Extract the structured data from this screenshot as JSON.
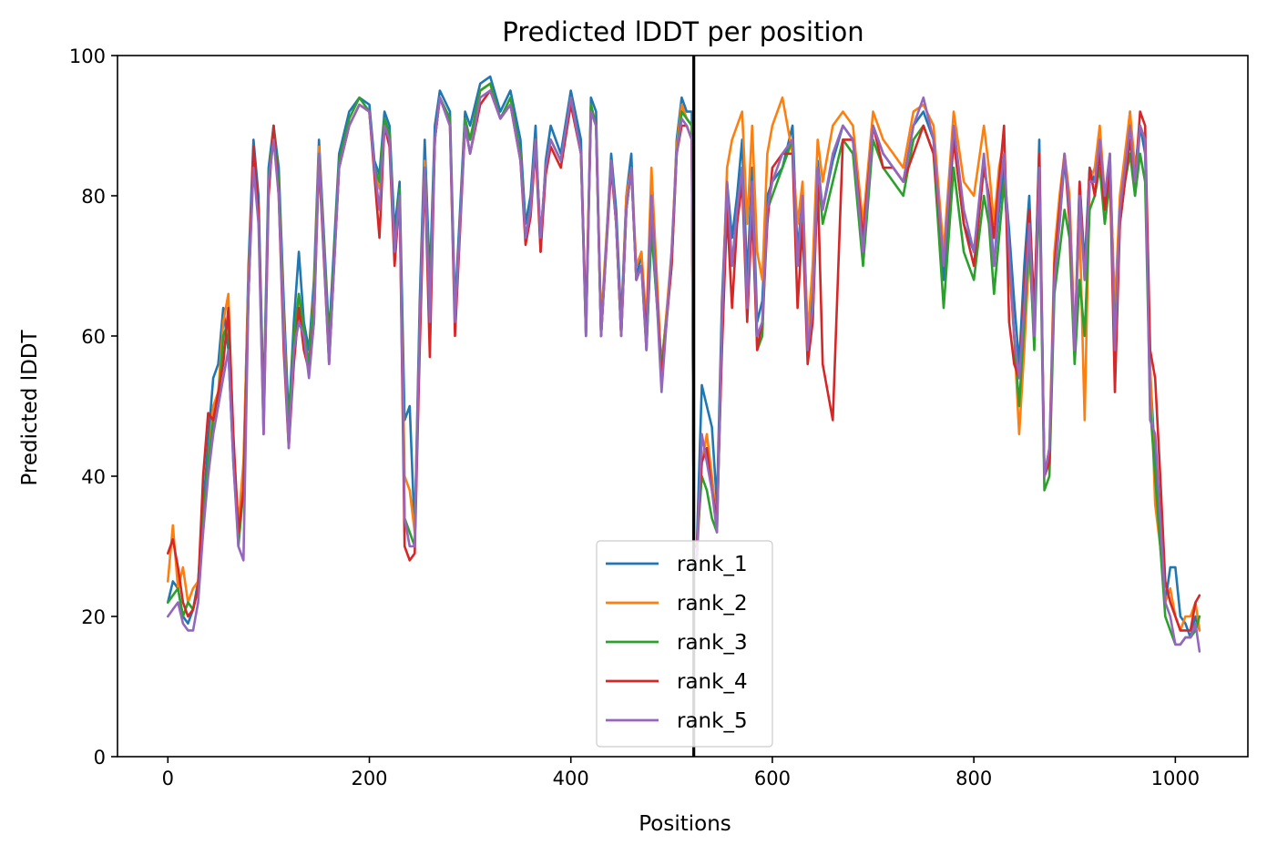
{
  "chart_data": {
    "type": "line",
    "title": "Predicted lDDT per position",
    "xlabel": "Positions",
    "ylabel": "Predicted lDDT",
    "xlim": [
      -50,
      1072
    ],
    "ylim": [
      0,
      100
    ],
    "xticks": [
      0,
      200,
      400,
      600,
      800,
      1000
    ],
    "yticks": [
      0,
      20,
      40,
      60,
      80,
      100
    ],
    "grid": false,
    "legend_position": "lower center",
    "chain_break_x": 522,
    "chain_break_color": "#000000",
    "series_x": [
      0,
      5,
      10,
      15,
      20,
      25,
      30,
      35,
      40,
      45,
      50,
      55,
      60,
      65,
      70,
      75,
      80,
      85,
      90,
      95,
      100,
      105,
      110,
      115,
      120,
      125,
      130,
      135,
      140,
      145,
      150,
      160,
      170,
      180,
      190,
      200,
      205,
      210,
      215,
      220,
      225,
      230,
      235,
      240,
      245,
      250,
      255,
      260,
      265,
      270,
      280,
      285,
      290,
      295,
      300,
      310,
      320,
      330,
      340,
      350,
      355,
      360,
      365,
      370,
      375,
      380,
      390,
      400,
      410,
      415,
      420,
      425,
      430,
      440,
      445,
      450,
      455,
      460,
      465,
      470,
      475,
      480,
      490,
      500,
      505,
      510,
      515,
      520,
      522,
      525,
      530,
      535,
      540,
      545,
      550,
      555,
      560,
      565,
      570,
      575,
      580,
      585,
      590,
      595,
      600,
      610,
      620,
      625,
      630,
      635,
      640,
      645,
      650,
      660,
      670,
      680,
      690,
      700,
      710,
      720,
      730,
      740,
      750,
      760,
      770,
      780,
      790,
      800,
      810,
      815,
      820,
      825,
      830,
      835,
      840,
      845,
      850,
      855,
      860,
      865,
      870,
      875,
      880,
      885,
      890,
      895,
      900,
      905,
      910,
      915,
      920,
      925,
      930,
      935,
      940,
      945,
      950,
      955,
      960,
      965,
      970,
      975,
      980,
      985,
      990,
      995,
      1000,
      1005,
      1010,
      1015,
      1020,
      1024
    ],
    "series": [
      {
        "name": "rank_1",
        "color": "#1f77b4",
        "values": [
          22,
          25,
          24,
          20,
          19,
          21,
          25,
          35,
          45,
          54,
          56,
          64,
          58,
          42,
          31,
          40,
          70,
          88,
          80,
          50,
          84,
          90,
          84,
          65,
          48,
          62,
          72,
          62,
          58,
          68,
          88,
          60,
          86,
          92,
          94,
          93,
          85,
          83,
          92,
          90,
          75,
          82,
          48,
          50,
          32,
          65,
          88,
          68,
          90,
          95,
          92,
          64,
          78,
          92,
          90,
          96,
          97,
          92,
          95,
          88,
          76,
          80,
          90,
          72,
          85,
          90,
          86,
          95,
          88,
          60,
          94,
          92,
          60,
          86,
          78,
          62,
          80,
          86,
          68,
          72,
          58,
          75,
          56,
          70,
          88,
          94,
          92,
          92,
          30,
          30,
          53,
          50,
          47,
          36,
          65,
          82,
          74,
          80,
          88,
          68,
          84,
          62,
          65,
          80,
          82,
          84,
          90,
          72,
          80,
          60,
          66,
          85,
          78,
          85,
          90,
          88,
          72,
          90,
          86,
          84,
          82,
          90,
          92,
          88,
          68,
          88,
          76,
          72,
          84,
          80,
          70,
          78,
          84,
          75,
          65,
          56,
          70,
          80,
          62,
          88,
          40,
          42,
          70,
          76,
          85,
          78,
          58,
          82,
          70,
          84,
          82,
          88,
          78,
          86,
          62,
          78,
          84,
          92,
          80,
          90,
          86,
          55,
          42,
          32,
          22,
          27,
          27,
          20,
          19,
          17,
          20,
          18
        ]
      },
      {
        "name": "rank_2",
        "color": "#ff7f0e",
        "values": [
          25,
          33,
          24,
          27,
          22,
          24,
          25,
          32,
          42,
          50,
          52,
          62,
          66,
          45,
          33,
          42,
          68,
          86,
          78,
          48,
          82,
          88,
          82,
          62,
          46,
          58,
          66,
          60,
          56,
          66,
          87,
          58,
          84,
          90,
          93,
          92,
          84,
          81,
          91,
          88,
          72,
          80,
          40,
          38,
          32,
          62,
          85,
          64,
          88,
          94,
          91,
          62,
          76,
          91,
          88,
          95,
          96,
          91,
          93,
          86,
          74,
          78,
          88,
          74,
          84,
          88,
          85,
          94,
          86,
          62,
          93,
          90,
          62,
          85,
          76,
          60,
          80,
          84,
          70,
          72,
          62,
          84,
          55,
          72,
          87,
          93,
          91,
          90,
          28,
          28,
          42,
          46,
          40,
          33,
          62,
          84,
          88,
          90,
          92,
          76,
          90,
          72,
          68,
          86,
          90,
          94,
          86,
          76,
          82,
          60,
          70,
          88,
          82,
          90,
          92,
          90,
          76,
          92,
          88,
          86,
          84,
          92,
          93,
          90,
          72,
          92,
          82,
          80,
          90,
          84,
          76,
          84,
          88,
          70,
          60,
          46,
          58,
          72,
          60,
          86,
          40,
          44,
          72,
          80,
          86,
          80,
          60,
          76,
          48,
          82,
          84,
          90,
          80,
          84,
          64,
          80,
          86,
          92,
          84,
          90,
          88,
          56,
          36,
          30,
          22,
          24,
          20,
          18,
          20,
          20,
          22,
          18
        ]
      },
      {
        "name": "rank_3",
        "color": "#2ca02c",
        "values": [
          22,
          23,
          24,
          20,
          22,
          21,
          24,
          34,
          42,
          48,
          50,
          60,
          62,
          44,
          30,
          38,
          66,
          86,
          78,
          48,
          82,
          90,
          82,
          60,
          47,
          60,
          66,
          61,
          56,
          65,
          86,
          58,
          85,
          91,
          94,
          92,
          84,
          82,
          91,
          89,
          72,
          81,
          34,
          32,
          30,
          62,
          84,
          64,
          88,
          94,
          91,
          62,
          76,
          91,
          88,
          95,
          96,
          91,
          94,
          86,
          74,
          78,
          88,
          74,
          84,
          88,
          85,
          94,
          86,
          60,
          93,
          90,
          60,
          85,
          76,
          60,
          78,
          84,
          68,
          70,
          58,
          76,
          55,
          70,
          86,
          92,
          91,
          90,
          30,
          30,
          40,
          38,
          34,
          32,
          60,
          80,
          70,
          78,
          84,
          64,
          80,
          58,
          60,
          78,
          80,
          84,
          88,
          70,
          78,
          58,
          62,
          84,
          76,
          82,
          88,
          86,
          70,
          88,
          84,
          82,
          80,
          88,
          90,
          86,
          64,
          84,
          72,
          68,
          80,
          76,
          66,
          74,
          82,
          72,
          60,
          50,
          62,
          74,
          58,
          82,
          38,
          40,
          66,
          72,
          78,
          74,
          56,
          68,
          60,
          78,
          80,
          84,
          76,
          82,
          60,
          76,
          82,
          86,
          80,
          86,
          82,
          50,
          40,
          30,
          20,
          18,
          16,
          16,
          17,
          17,
          18,
          20
        ]
      },
      {
        "name": "rank_4",
        "color": "#d62728",
        "values": [
          29,
          31,
          27,
          22,
          20,
          21,
          24,
          40,
          49,
          48,
          52,
          56,
          64,
          46,
          32,
          38,
          66,
          87,
          78,
          46,
          80,
          90,
          80,
          58,
          44,
          56,
          64,
          58,
          55,
          62,
          85,
          56,
          84,
          90,
          93,
          92,
          83,
          74,
          90,
          87,
          70,
          80,
          30,
          28,
          29,
          58,
          84,
          57,
          88,
          94,
          90,
          60,
          75,
          90,
          86,
          93,
          95,
          91,
          93,
          85,
          73,
          77,
          87,
          72,
          83,
          87,
          84,
          93,
          86,
          62,
          92,
          90,
          60,
          84,
          76,
          60,
          78,
          84,
          68,
          70,
          60,
          80,
          54,
          70,
          86,
          90,
          90,
          88,
          30,
          30,
          42,
          44,
          38,
          34,
          58,
          78,
          64,
          76,
          82,
          62,
          78,
          58,
          62,
          76,
          84,
          86,
          86,
          64,
          76,
          56,
          62,
          82,
          56,
          48,
          88,
          88,
          74,
          90,
          84,
          84,
          82,
          86,
          90,
          86,
          70,
          88,
          76,
          70,
          84,
          80,
          74,
          82,
          90,
          62,
          56,
          54,
          66,
          78,
          64,
          86,
          40,
          42,
          70,
          78,
          86,
          76,
          58,
          82,
          68,
          84,
          80,
          86,
          78,
          84,
          52,
          76,
          82,
          88,
          82,
          92,
          90,
          58,
          54,
          40,
          25,
          22,
          20,
          18,
          18,
          18,
          22,
          23
        ]
      },
      {
        "name": "rank_5",
        "color": "#9467bd",
        "values": [
          20,
          21,
          22,
          19,
          18,
          18,
          22,
          32,
          40,
          46,
          50,
          54,
          58,
          42,
          30,
          28,
          66,
          84,
          76,
          46,
          82,
          88,
          80,
          60,
          44,
          58,
          62,
          60,
          54,
          62,
          86,
          56,
          84,
          90,
          93,
          92,
          84,
          78,
          90,
          88,
          72,
          80,
          34,
          30,
          30,
          62,
          84,
          62,
          88,
          94,
          90,
          62,
          76,
          90,
          86,
          94,
          95,
          91,
          93,
          85,
          74,
          78,
          88,
          74,
          84,
          88,
          85,
          94,
          86,
          60,
          92,
          90,
          60,
          85,
          76,
          60,
          78,
          84,
          68,
          70,
          58,
          80,
          52,
          72,
          86,
          91,
          90,
          88,
          28,
          28,
          46,
          42,
          38,
          32,
          62,
          82,
          70,
          78,
          84,
          64,
          82,
          60,
          62,
          78,
          82,
          86,
          88,
          70,
          80,
          58,
          64,
          84,
          78,
          86,
          90,
          88,
          72,
          90,
          86,
          84,
          82,
          90,
          94,
          88,
          70,
          90,
          78,
          72,
          86,
          78,
          70,
          80,
          86,
          72,
          60,
          54,
          64,
          76,
          60,
          84,
          40,
          44,
          68,
          76,
          86,
          78,
          58,
          80,
          68,
          82,
          82,
          88,
          80,
          86,
          58,
          78,
          84,
          90,
          82,
          90,
          88,
          48,
          46,
          34,
          22,
          20,
          16,
          16,
          17,
          17,
          19,
          15
        ]
      }
    ]
  }
}
